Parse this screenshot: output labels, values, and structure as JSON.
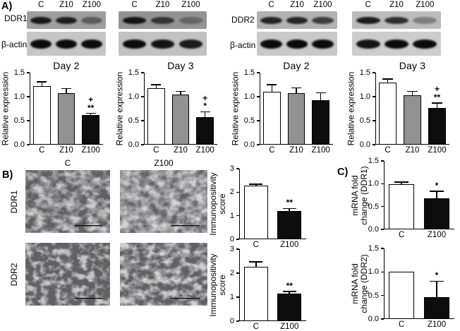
{
  "panel_a": {
    "label": "A)",
    "groups": [
      {
        "protein": "DDR1",
        "loading_control": "β-actin",
        "membranes": [
          {
            "lanes": [
              "C",
              "Z10",
              "Z100"
            ],
            "target_band_intensity": [
              0.92,
              0.88,
              0.45
            ],
            "loading_band_intensity": [
              1,
              1,
              1
            ]
          },
          {
            "lanes": [
              "C",
              "Z10",
              "Z100"
            ],
            "target_band_intensity": [
              0.95,
              0.7,
              0.35
            ],
            "loading_band_intensity": [
              1,
              0.95,
              0.9
            ]
          }
        ]
      },
      {
        "protein": "DDR2",
        "loading_control": "β-actin",
        "membranes": [
          {
            "lanes": [
              "C",
              "Z10",
              "Z100"
            ],
            "target_band_intensity": [
              0.85,
              0.85,
              0.7
            ],
            "loading_band_intensity": [
              1,
              1,
              1
            ]
          },
          {
            "lanes": [
              "C",
              "Z10",
              "Z100"
            ],
            "target_band_intensity": [
              0.9,
              0.8,
              0.35
            ],
            "loading_band_intensity": [
              0.95,
              1,
              1
            ]
          }
        ]
      }
    ]
  },
  "chart_data": [
    {
      "id": "ddr1-day2",
      "type": "bar",
      "title": "Day 2",
      "ylabel": [
        "Relative expression"
      ],
      "categories": [
        "C",
        "Z10",
        "Z100"
      ],
      "values": [
        1.22,
        1.08,
        0.62
      ],
      "errors": [
        0.08,
        0.08,
        0.02
      ],
      "annotations": [
        "",
        "",
        "+\n**"
      ],
      "ylim": [
        0,
        1.5
      ],
      "ytick_labels": [
        "0.0",
        "0.5",
        "1.0",
        "1.5"
      ],
      "bar_colors": [
        "#ffffff",
        "#929292",
        "#0d0d0d"
      ]
    },
    {
      "id": "ddr1-day3",
      "type": "bar",
      "title": "Day 3",
      "ylabel": [
        "Relative expression"
      ],
      "categories": [
        "C",
        "Z10",
        "Z100"
      ],
      "values": [
        1.17,
        1.05,
        0.58
      ],
      "errors": [
        0.07,
        0.05,
        0.09
      ],
      "annotations": [
        "",
        "",
        "+\n*"
      ],
      "ylim": [
        0,
        1.5
      ],
      "ytick_labels": [
        "0.0",
        "0.5",
        "1.0",
        "1.5"
      ],
      "bar_colors": [
        "#ffffff",
        "#929292",
        "#0d0d0d"
      ]
    },
    {
      "id": "ddr2-day2",
      "type": "bar",
      "title": "Day 2",
      "ylabel": [
        "Relative expression"
      ],
      "categories": [
        "C",
        "Z10",
        "Z100"
      ],
      "values": [
        1.11,
        1.07,
        0.92
      ],
      "errors": [
        0.13,
        0.1,
        0.15
      ],
      "annotations": [
        "",
        "",
        ""
      ],
      "ylim": [
        0,
        1.5
      ],
      "ytick_labels": [
        "0.0",
        "0.5",
        "1.0",
        "1.5"
      ],
      "bar_colors": [
        "#ffffff",
        "#929292",
        "#0d0d0d"
      ]
    },
    {
      "id": "ddr2-day3",
      "type": "bar",
      "title": "Day 3",
      "ylabel": [
        "Relative expression"
      ],
      "categories": [
        "C",
        "Z10",
        "Z100"
      ],
      "values": [
        1.29,
        1.03,
        0.77
      ],
      "errors": [
        0.07,
        0.07,
        0.09
      ],
      "annotations": [
        "",
        "",
        "+\n**"
      ],
      "ylim": [
        0,
        1.5
      ],
      "ytick_labels": [
        "0.0",
        "0.5",
        "1.0",
        "1.5"
      ],
      "bar_colors": [
        "#ffffff",
        "#929292",
        "#0d0d0d"
      ]
    },
    {
      "id": "ihc-score-ddr1",
      "type": "bar",
      "title": "",
      "ylabel": [
        "Immunopositivity",
        "score"
      ],
      "categories": [
        "C",
        "Z100"
      ],
      "values": [
        2.28,
        1.21
      ],
      "errors": [
        0.04,
        0.07
      ],
      "annotations": [
        "",
        "**"
      ],
      "ylim": [
        0,
        3
      ],
      "ytick_labels": [
        "0",
        "1",
        "2",
        "3"
      ],
      "bar_colors": [
        "#ffffff",
        "#0d0d0d"
      ]
    },
    {
      "id": "ihc-score-ddr2",
      "type": "bar",
      "title": "",
      "ylabel": [
        "Immunopositivity",
        "score"
      ],
      "categories": [
        "C",
        "Z100"
      ],
      "values": [
        2.27,
        1.16
      ],
      "errors": [
        0.18,
        0.05
      ],
      "annotations": [
        "",
        "**"
      ],
      "ylim": [
        0,
        3
      ],
      "ytick_labels": [
        "0",
        "1",
        "2",
        "3"
      ],
      "bar_colors": [
        "#ffffff",
        "#0d0d0d"
      ]
    },
    {
      "id": "mrna-fold-change-ddr1",
      "type": "bar",
      "title": "",
      "ylabel": [
        "mRNA fold",
        "change (DDR1)"
      ],
      "categories": [
        "C",
        "Z100"
      ],
      "values": [
        0.99,
        0.68
      ],
      "errors": [
        0.03,
        0.14
      ],
      "annotations": [
        "",
        "*"
      ],
      "ylim": [
        0,
        1.5
      ],
      "ytick_labels": [
        "0.0",
        "0.5",
        "1.0",
        "1.5"
      ],
      "bar_colors": [
        "#ffffff",
        "#0d0d0d"
      ]
    },
    {
      "id": "mrna-fold-change-ddr2",
      "type": "bar",
      "title": "",
      "ylabel": [
        "mRNA fold",
        "change (DDR2)"
      ],
      "categories": [
        "C",
        "Z100"
      ],
      "values": [
        1.01,
        0.46
      ],
      "errors": [
        0,
        0.33
      ],
      "annotations": [
        "",
        "*"
      ],
      "ylim": [
        0,
        1.5
      ],
      "ytick_labels": [
        "0.0",
        "0.5",
        "1.0",
        "1.5"
      ],
      "bar_colors": [
        "#ffffff",
        "#0d0d0d"
      ]
    }
  ],
  "panel_b": {
    "label": "B)",
    "column_headers": [
      "C",
      "Z100"
    ],
    "rows": [
      {
        "label": "DDR1",
        "images": [
          {
            "column": "C",
            "staining": "strong",
            "scale_bar": "50.0 μm"
          },
          {
            "column": "Z100",
            "staining": "weak",
            "scale_bar": "50.0 μm"
          }
        ]
      },
      {
        "label": "DDR2",
        "images": [
          {
            "column": "C",
            "staining": "dense",
            "scale_bar": "50.0 μm"
          },
          {
            "column": "Z100",
            "staining": "medium",
            "scale_bar": "50.0 μm"
          }
        ]
      }
    ]
  },
  "panel_c": {
    "label": "C)"
  }
}
